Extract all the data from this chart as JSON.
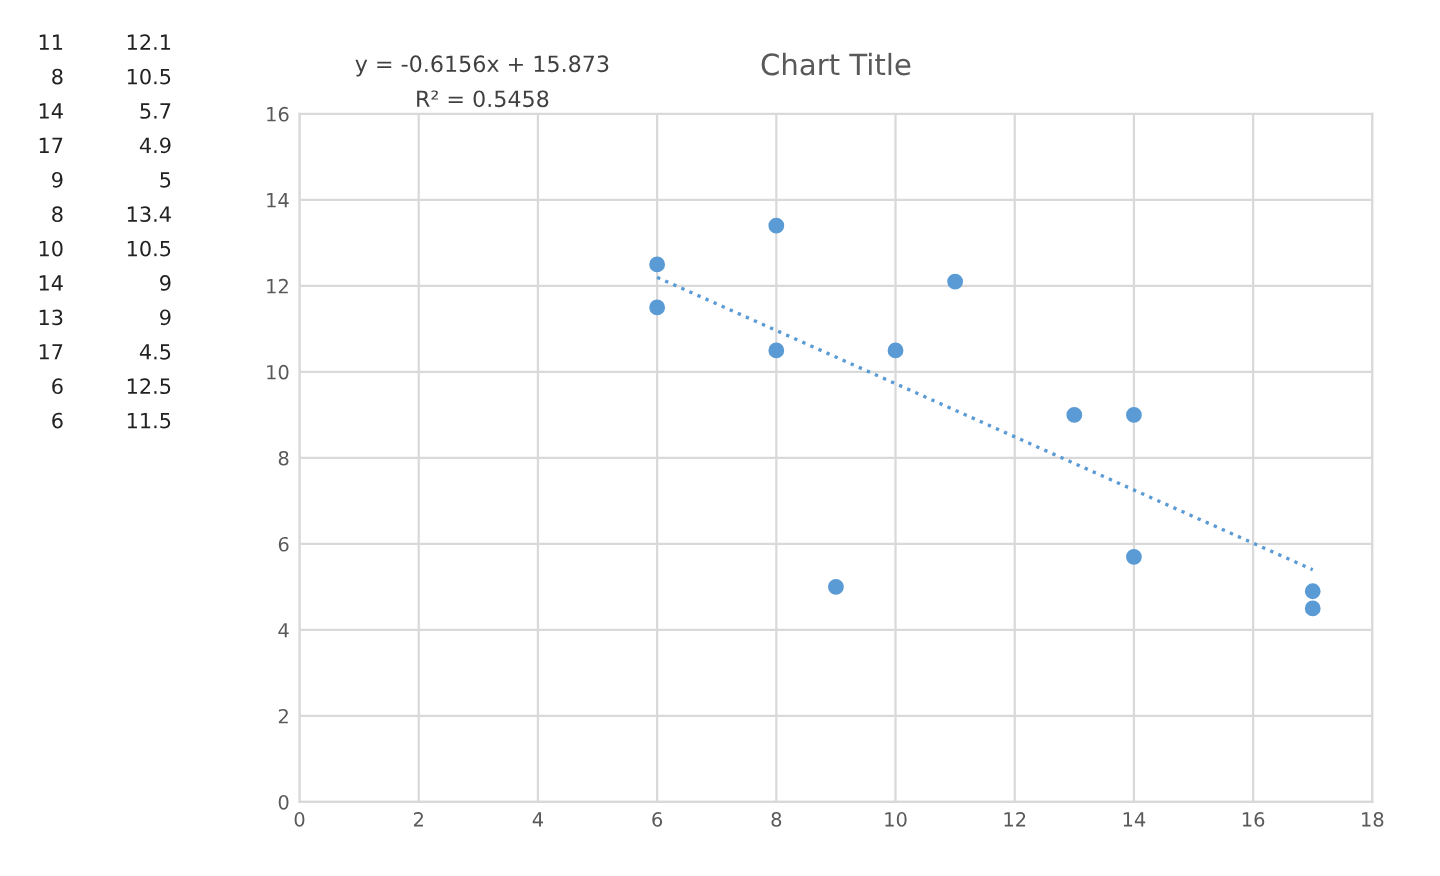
{
  "chart_data": {
    "type": "scatter",
    "title": "Chart Title",
    "x": [
      11,
      8,
      14,
      17,
      9,
      8,
      10,
      14,
      13,
      17,
      6,
      6
    ],
    "series": [
      {
        "color": "#5b9bd5",
        "marker": "circle",
        "values": [
          12.1,
          10.5,
          5.7,
          4.9,
          5,
          13.4,
          10.5,
          9,
          9,
          4.5,
          12.5,
          11.5
        ]
      },
      {
        "type": "line",
        "color": "#5b9bd5",
        "line_style": "dotted",
        "x": [
          6,
          17
        ],
        "values": [
          12.2,
          5.4
        ]
      }
    ],
    "annotations": [
      "y = -0.6156x + 15.873",
      "R² = 0.5458",
      "11",
      "12.1",
      "8",
      "10.5",
      "14",
      "5.7",
      "17",
      "4.9",
      "9",
      "5",
      "8",
      "13.4",
      "10",
      "10.5",
      "14",
      "9",
      "13",
      "9",
      "17",
      "4.5",
      "6",
      "12.5",
      "6",
      "11.5"
    ],
    "xlim": [
      0,
      18
    ],
    "xticks": [
      0,
      2,
      4,
      6,
      8,
      10,
      12,
      14,
      16,
      18
    ],
    "ylim": [
      0,
      16
    ],
    "yticks": [
      0,
      2,
      4,
      6,
      8,
      10,
      12,
      14,
      16
    ],
    "grid": true
  }
}
